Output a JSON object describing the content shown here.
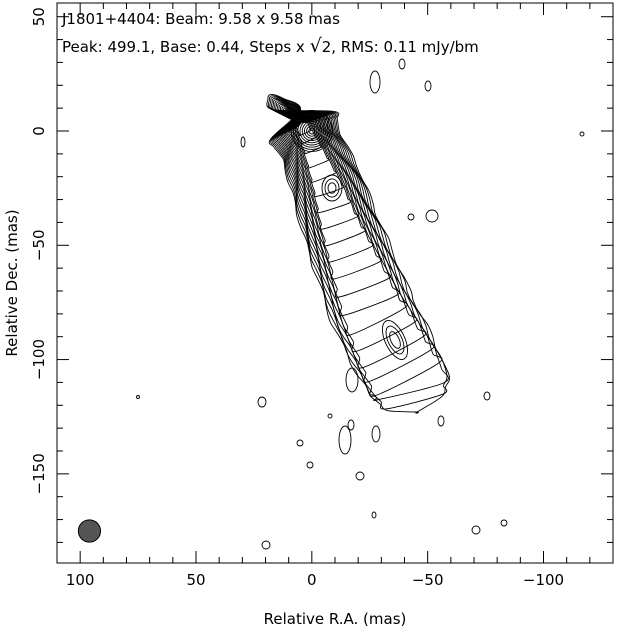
{
  "chart_data": {
    "type": "contour",
    "source": "J1801+4404",
    "beam_label": "Beam: 9.58 x 9.58 mas",
    "title_line1": "J1801+4404: Beam: 9.58 x 9.58 mas",
    "title_line2_prefix": "Peak: 499.1, Base: 0.44, Steps x ",
    "title_line2_suffix": "2, RMS: 0.11 mJy/bm",
    "sqrt_symbol": "√",
    "peak": 499.1,
    "peak_units": "",
    "base": 0.44,
    "step_factor": "sqrt2",
    "rms": 0.11,
    "rms_units": "mJy/bm",
    "beam_major_mas": 9.58,
    "beam_minor_mas": 9.58,
    "xlabel": "Relative R.A. (mas)",
    "ylabel": "Relative Dec. (mas)",
    "xlim": [
      110,
      -130
    ],
    "ylim": [
      -189,
      56
    ],
    "x_major_ticks": [
      100,
      50,
      0,
      -50,
      -100
    ],
    "x_tick_labels": [
      "100",
      "50",
      "0",
      "−50",
      "−100"
    ],
    "y_major_ticks": [
      50,
      0,
      -50,
      -100,
      -150
    ],
    "y_tick_labels": [
      "50",
      "0",
      "−50",
      "−100",
      "−150"
    ],
    "x_minor_step": 10,
    "y_minor_step": 10,
    "grid": false,
    "core": {
      "x": 0,
      "y": 0
    },
    "beam_position": {
      "x": 96,
      "y": -175
    },
    "beam_fill": "#555555",
    "line_color": "#000000",
    "contour_levels": 21
  }
}
